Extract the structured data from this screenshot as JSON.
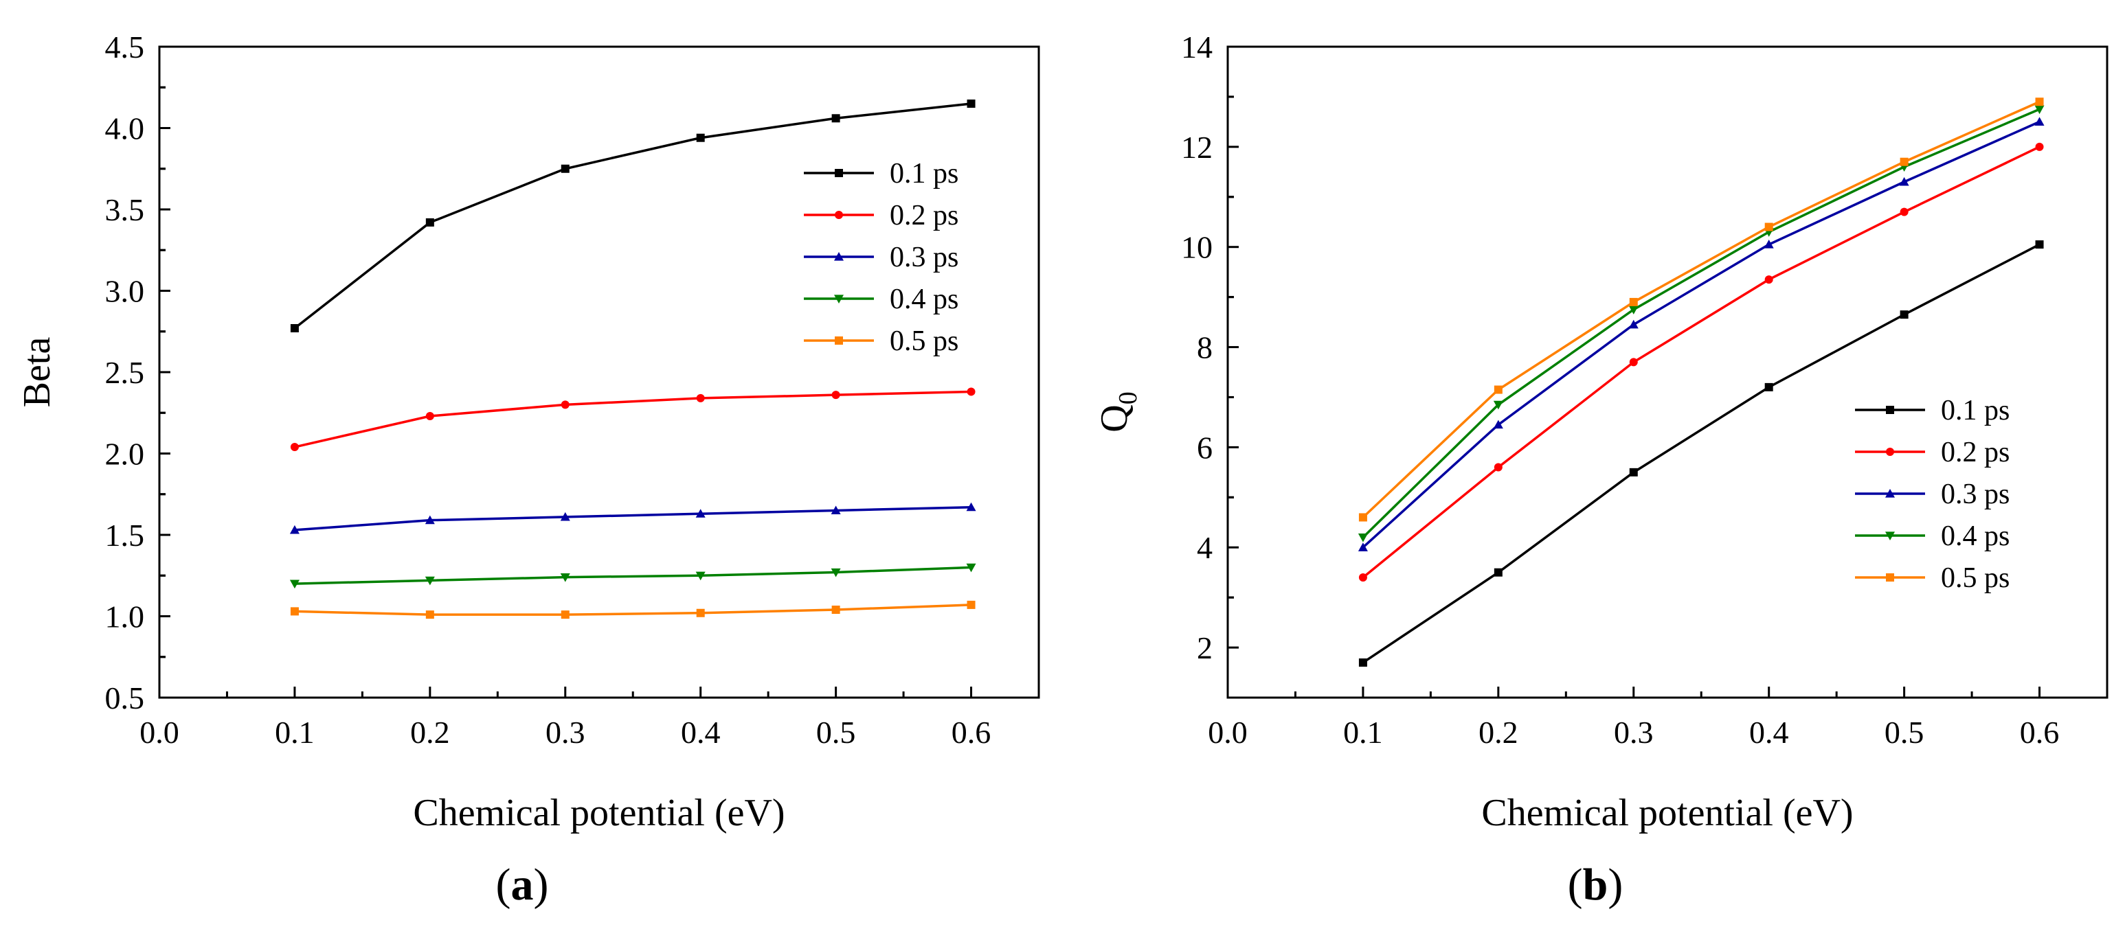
{
  "chart_data": [
    {
      "type": "line",
      "panel_label_parts": [
        "(",
        "a",
        ")"
      ],
      "xlabel": "Chemical potential (eV)",
      "ylabel": "Beta",
      "xlim": [
        0.0,
        0.65
      ],
      "ylim": [
        0.5,
        4.5
      ],
      "xticks": [
        "0.0",
        "0.1",
        "0.2",
        "0.3",
        "0.4",
        "0.5",
        "0.6"
      ],
      "yticks": [
        "0.5",
        "1.0",
        "1.5",
        "2.0",
        "2.5",
        "3.0",
        "3.5",
        "4.0",
        "4.5"
      ],
      "legend_position": "top-right",
      "grid": false,
      "x": [
        0.1,
        0.2,
        0.3,
        0.4,
        0.5,
        0.6
      ],
      "series": [
        {
          "name": "0.1 ps",
          "color": "#000000",
          "marker": "square",
          "values": [
            2.77,
            3.42,
            3.75,
            3.94,
            4.06,
            4.15
          ]
        },
        {
          "name": "0.2 ps",
          "color": "#ff0000",
          "marker": "circle",
          "values": [
            2.04,
            2.23,
            2.3,
            2.34,
            2.36,
            2.38
          ]
        },
        {
          "name": "0.3 ps",
          "color": "#0000a0",
          "marker": "triangle-up",
          "values": [
            1.53,
            1.59,
            1.61,
            1.63,
            1.65,
            1.67
          ]
        },
        {
          "name": "0.4 ps",
          "color": "#008000",
          "marker": "triangle-down",
          "values": [
            1.2,
            1.22,
            1.24,
            1.25,
            1.27,
            1.3
          ]
        },
        {
          "name": "0.5 ps",
          "color": "#ff8000",
          "marker": "square",
          "values": [
            1.03,
            1.01,
            1.01,
            1.02,
            1.04,
            1.07
          ]
        }
      ]
    },
    {
      "type": "line",
      "panel_label_parts": [
        "(",
        "b",
        ")"
      ],
      "xlabel": "Chemical potential (eV)",
      "ylabel": "Q",
      "ylabel_subscript": "0",
      "xlim": [
        0.0,
        0.65
      ],
      "ylim": [
        1,
        14
      ],
      "xticks": [
        "0.0",
        "0.1",
        "0.2",
        "0.3",
        "0.4",
        "0.5",
        "0.6"
      ],
      "yticks": [
        "2",
        "4",
        "6",
        "8",
        "10",
        "12",
        "14"
      ],
      "legend_position": "bottom-right",
      "grid": false,
      "x": [
        0.1,
        0.2,
        0.3,
        0.4,
        0.5,
        0.6
      ],
      "series": [
        {
          "name": "0.1 ps",
          "color": "#000000",
          "marker": "square",
          "values": [
            1.7,
            3.5,
            5.5,
            7.2,
            8.65,
            10.05
          ]
        },
        {
          "name": "0.2 ps",
          "color": "#ff0000",
          "marker": "circle",
          "values": [
            3.4,
            5.6,
            7.7,
            9.35,
            10.7,
            12.0
          ]
        },
        {
          "name": "0.3 ps",
          "color": "#0000a0",
          "marker": "triangle-up",
          "values": [
            4.0,
            6.45,
            8.45,
            10.05,
            11.3,
            12.5
          ]
        },
        {
          "name": "0.4 ps",
          "color": "#008000",
          "marker": "triangle-down",
          "values": [
            4.2,
            6.85,
            8.75,
            10.3,
            11.6,
            12.75
          ]
        },
        {
          "name": "0.5 ps",
          "color": "#ff8000",
          "marker": "square",
          "values": [
            4.6,
            7.15,
            8.9,
            10.4,
            11.7,
            12.9
          ]
        }
      ]
    }
  ]
}
